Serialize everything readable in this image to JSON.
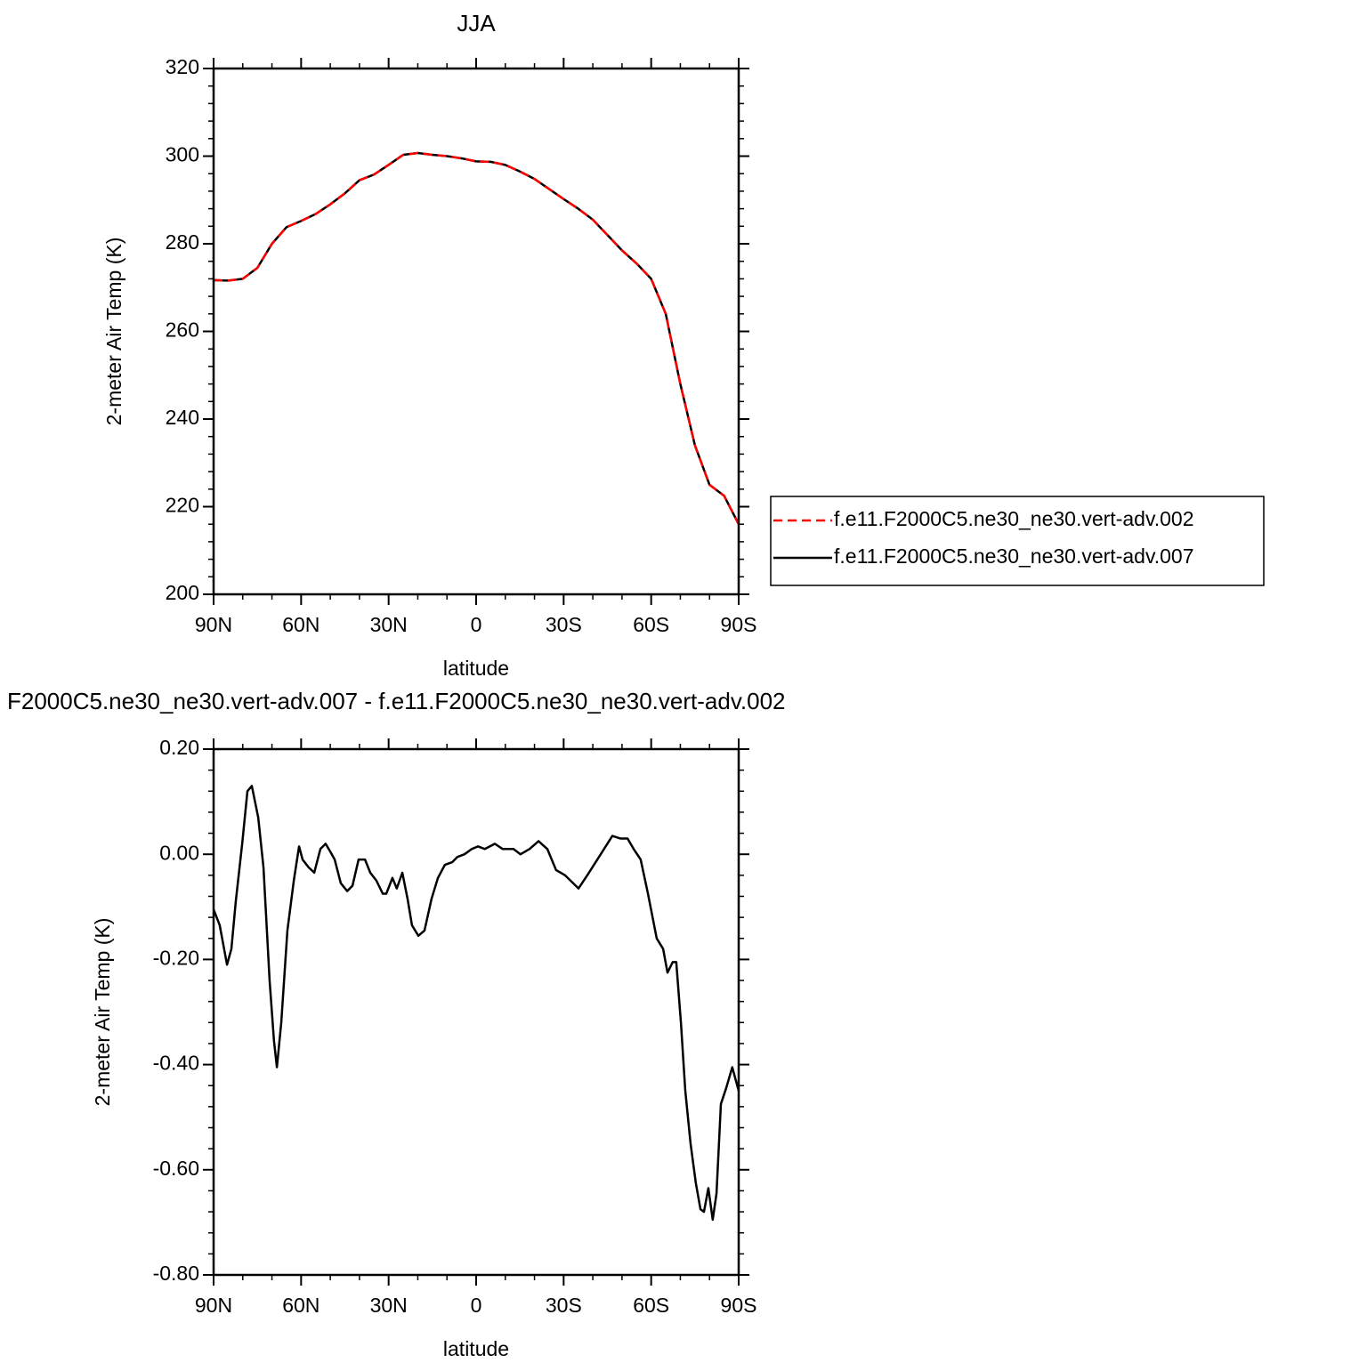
{
  "chart_data": [
    {
      "type": "line",
      "title": "JJA",
      "xlabel": "latitude",
      "ylabel": "2-meter Air Temp (K)",
      "x": [
        90,
        85,
        80,
        75,
        70,
        65,
        60,
        55,
        50,
        45,
        40,
        35,
        30,
        25,
        20,
        15,
        10,
        5,
        0,
        -5,
        -10,
        -15,
        -20,
        -25,
        -30,
        -35,
        -40,
        -45,
        -50,
        -55,
        -60,
        -65,
        -70,
        -75,
        -80,
        -85,
        -90
      ],
      "series": [
        {
          "name": "f.e11.F2000C5.ne30_ne30.vert-adv.002",
          "color": "#ff0000",
          "line_style": "dashed",
          "values": [
            271.7,
            271.6,
            272,
            274.5,
            280,
            283.8,
            285.2,
            286.8,
            289,
            291.5,
            294.5,
            295.8,
            298,
            300.3,
            300.7,
            300.3,
            300,
            299.5,
            298.8,
            298.7,
            298,
            296.5,
            294.8,
            292.5,
            290.2,
            288,
            285.5,
            282,
            278.5,
            275.5,
            272,
            264,
            248,
            234,
            225,
            222.5,
            216
          ]
        },
        {
          "name": "f.e11.F2000C5.ne30_ne30.vert-adv.007",
          "color": "#000000",
          "line_style": "solid",
          "values": [
            271.7,
            271.6,
            272,
            274.5,
            280,
            283.8,
            285.2,
            286.8,
            289,
            291.5,
            294.5,
            295.8,
            298,
            300.3,
            300.7,
            300.3,
            300,
            299.5,
            298.8,
            298.7,
            298,
            296.5,
            294.8,
            292.5,
            290.2,
            288,
            285.5,
            282,
            278.5,
            275.5,
            272,
            264,
            248,
            234,
            225,
            222.5,
            216
          ]
        }
      ],
      "xlim": [
        90,
        -90
      ],
      "xticks": [
        {
          "value": 90,
          "label": "90N"
        },
        {
          "value": 60,
          "label": "60N"
        },
        {
          "value": 30,
          "label": "30N"
        },
        0,
        {
          "value": -30,
          "label": "30S"
        },
        {
          "value": -60,
          "label": "60S"
        },
        {
          "value": -90,
          "label": "90S"
        }
      ],
      "ylim": [
        200,
        320
      ],
      "yticks": [
        200,
        220,
        240,
        260,
        280,
        300,
        320
      ],
      "legend": "right"
    },
    {
      "type": "line",
      "title": "F2000C5.ne30_ne30.vert-adv.007 - f.e11.F2000C5.ne30_ne30.vert-adv.002",
      "xlabel": "latitude",
      "ylabel": "2-meter Air Temp (K)",
      "x": [
        90,
        87.9,
        85.4,
        83.9,
        82.4,
        80.2,
        78.4,
        76.9,
        74.7,
        72.9,
        70.8,
        69.3,
        68.3,
        66.8,
        64.7,
        62.5,
        60.7,
        59.5,
        57.4,
        55.5,
        53.4,
        51.6,
        50,
        48.5,
        46.4,
        44.2,
        42.4,
        40.3,
        38.1,
        36.3,
        34.2,
        32,
        30.8,
        28.7,
        27.2,
        25.3,
        23.5,
        22,
        19.8,
        17.7,
        15.3,
        13.1,
        10.7,
        8.2,
        6.4,
        4,
        1.5,
        -0.6,
        -3,
        -6.4,
        -9.1,
        -12.8,
        -15.2,
        -18.3,
        -21.4,
        -24.4,
        -27.4,
        -30.5,
        -35.1,
        -38.1,
        -42.7,
        -46.7,
        -49.4,
        -51.9,
        -54,
        -56.4,
        -58.9,
        -61.9,
        -64.1,
        -65.6,
        -67.4,
        -68.6,
        -70.2,
        -71.7,
        -73.5,
        -75.3,
        -76.9,
        -78.1,
        -79.6,
        -81.1,
        -82.4,
        -83.9,
        -85.7,
        -87.8,
        -90
      ],
      "values": [
        -0.105,
        -0.135,
        -0.21,
        -0.18,
        -0.09,
        0.02,
        0.12,
        0.13,
        0.07,
        -0.025,
        -0.24,
        -0.355,
        -0.405,
        -0.32,
        -0.145,
        -0.05,
        0.015,
        -0.01,
        -0.025,
        -0.035,
        0.01,
        0.02,
        0.005,
        -0.01,
        -0.055,
        -0.07,
        -0.06,
        -0.01,
        -0.01,
        -0.035,
        -0.05,
        -0.075,
        -0.075,
        -0.045,
        -0.065,
        -0.035,
        -0.085,
        -0.135,
        -0.155,
        -0.145,
        -0.085,
        -0.045,
        -0.02,
        -0.015,
        -0.005,
        0,
        0.01,
        0.015,
        0.01,
        0.02,
        0.01,
        0.01,
        0,
        0.01,
        0.025,
        0.01,
        -0.03,
        -0.04,
        -0.065,
        -0.04,
        0,
        0.035,
        0.03,
        0.03,
        0.01,
        -0.01,
        -0.075,
        -0.16,
        -0.18,
        -0.225,
        -0.205,
        -0.205,
        -0.32,
        -0.45,
        -0.55,
        -0.625,
        -0.675,
        -0.68,
        -0.635,
        -0.695,
        -0.645,
        -0.475,
        -0.445,
        -0.405,
        -0.45
      ],
      "color": "#000000",
      "xlim": [
        90,
        -90
      ],
      "xticks": [
        {
          "value": 90,
          "label": "90N"
        },
        {
          "value": 60,
          "label": "60N"
        },
        {
          "value": 30,
          "label": "30N"
        },
        0,
        {
          "value": -30,
          "label": "30S"
        },
        {
          "value": -60,
          "label": "60S"
        },
        {
          "value": -90,
          "label": "90S"
        }
      ],
      "ylim": [
        -0.8,
        0.2
      ],
      "yticks": [
        {
          "value": -0.8,
          "label": "-0.80"
        },
        {
          "value": -0.6,
          "label": "-0.60"
        },
        {
          "value": -0.4,
          "label": "-0.40"
        },
        {
          "value": -0.2,
          "label": "-0.20"
        },
        {
          "value": 0,
          "label": "0.00"
        },
        {
          "value": 0.2,
          "label": "0.20"
        }
      ]
    }
  ]
}
